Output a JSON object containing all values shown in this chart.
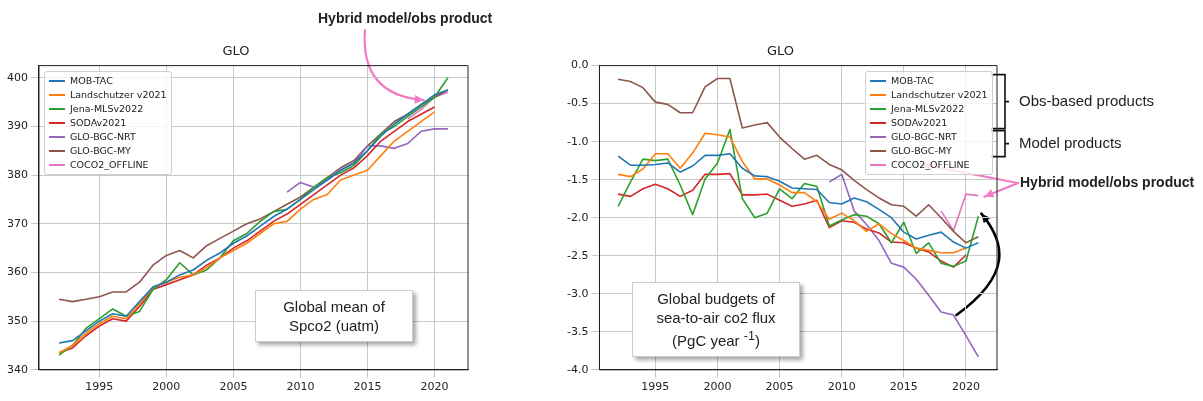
{
  "chart_data": [
    {
      "type": "line",
      "title": "GLO",
      "x": [
        1992,
        1993,
        1994,
        1995,
        1996,
        1997,
        1998,
        1999,
        2000,
        2001,
        2002,
        2003,
        2004,
        2005,
        2006,
        2007,
        2008,
        2009,
        2010,
        2011,
        2012,
        2013,
        2014,
        2015,
        2016,
        2017,
        2018,
        2019,
        2020,
        2021
      ],
      "xlim": [
        1990.5,
        2022.5
      ],
      "xticks": [
        1995,
        2000,
        2005,
        2010,
        2015,
        2020
      ],
      "ylim": [
        340,
        402.5
      ],
      "yticks": [
        340,
        350,
        360,
        370,
        380,
        390,
        400
      ],
      "grid": true,
      "legend": "top left",
      "marker": "none",
      "line_style": "solid",
      "series": [
        {
          "name": "MOB-TAC",
          "color": "#1f77b4",
          "values": [
            345.5,
            346,
            348,
            350,
            351.5,
            351,
            354,
            357,
            358,
            359.5,
            360.5,
            362.5,
            364,
            366,
            367.5,
            369.5,
            371.5,
            373,
            375,
            377,
            379,
            381,
            382.5,
            385,
            388,
            390.5,
            392.5,
            394.5,
            396.5,
            397.5
          ]
        },
        {
          "name": "Landschutzer v2021",
          "color": "#ff7f0e",
          "values": [
            343.5,
            345,
            347.5,
            349.5,
            351,
            350.5,
            353.5,
            357,
            358,
            359,
            359.5,
            361,
            363,
            364.5,
            366,
            368,
            370,
            370.5,
            373,
            375,
            376,
            379,
            380,
            381,
            384,
            387,
            389,
            391,
            393,
            null
          ]
        },
        {
          "name": "Jena-MLSv2022",
          "color": "#2ca02c",
          "values": [
            343,
            345,
            348.5,
            350.5,
            352.5,
            351,
            352,
            356.5,
            358.5,
            362,
            359.5,
            360.5,
            363,
            366.5,
            368,
            370.5,
            372.5,
            373,
            375,
            377.5,
            379.5,
            380.5,
            382,
            385,
            388.5,
            390,
            392,
            394,
            396,
            400
          ]
        },
        {
          "name": "SODAv2021",
          "color": "#d62728",
          "values": [
            343.5,
            344.5,
            347,
            349,
            350.5,
            350,
            353,
            356.5,
            357.5,
            358.5,
            359.5,
            361.5,
            363,
            365,
            366.5,
            368.5,
            370.5,
            372,
            374,
            376,
            378,
            380,
            381.5,
            384,
            387,
            389,
            391,
            392.5,
            394,
            null
          ]
        },
        {
          "name": "GLO-BGC-NRT",
          "color": "#9467bd",
          "values": [
            null,
            null,
            null,
            null,
            null,
            null,
            null,
            null,
            null,
            null,
            null,
            null,
            null,
            null,
            null,
            null,
            null,
            376.5,
            378.5,
            377.5,
            379,
            381,
            382.5,
            386,
            386,
            385.5,
            386.5,
            389,
            389.5,
            389.5
          ]
        },
        {
          "name": "GLO-BGC-MY",
          "color": "#8c564b",
          "values": [
            354.5,
            354,
            354.5,
            355,
            356,
            356,
            358,
            361.5,
            363.5,
            364.5,
            363,
            365.5,
            367,
            368.5,
            370,
            371,
            372.5,
            374,
            375.5,
            377.5,
            379.5,
            381.5,
            383,
            386,
            388.5,
            391,
            392.5,
            394.5,
            396,
            397.5
          ]
        },
        {
          "name": "COCO2_OFFLINE",
          "color": "#e377c2",
          "values": [
            null,
            null,
            null,
            null,
            null,
            null,
            null,
            null,
            null,
            null,
            null,
            null,
            null,
            null,
            null,
            null,
            null,
            null,
            null,
            null,
            null,
            null,
            null,
            null,
            null,
            null,
            391.5,
            393.5,
            396,
            397
          ]
        }
      ],
      "annotations": [
        {
          "text": "Hybrid model/obs product",
          "x": 2019.5,
          "y": 395
        },
        "Global mean of Spco2 (uatm)"
      ]
    },
    {
      "type": "line",
      "title": "GLO",
      "x": [
        1992,
        1993,
        1994,
        1995,
        1996,
        1997,
        1998,
        1999,
        2000,
        2001,
        2002,
        2003,
        2004,
        2005,
        2006,
        2007,
        2008,
        2009,
        2010,
        2011,
        2012,
        2013,
        2014,
        2015,
        2016,
        2017,
        2018,
        2019,
        2020,
        2021
      ],
      "xlim": [
        1990.5,
        2022.5
      ],
      "xticks": [
        1995,
        2000,
        2005,
        2010,
        2015,
        2020
      ],
      "ylim": [
        -4.0,
        0.0
      ],
      "yticks": [
        {
          "value": -4,
          "label": "-4.0"
        },
        -3.5,
        {
          "value": -3,
          "label": "-3.0"
        },
        -2.5,
        {
          "value": -2,
          "label": "-2.0"
        },
        -1.5,
        {
          "value": -1,
          "label": "-1.0"
        },
        -0.5,
        {
          "value": 0,
          "label": "0.0"
        }
      ],
      "grid": true,
      "legend": "top right",
      "marker": "none",
      "line_style": "solid",
      "series": [
        {
          "name": "MOB-TAC",
          "color": "#1f77b4",
          "values": [
            -1.19,
            -1.31,
            -1.31,
            -1.3,
            -1.28,
            -1.4,
            -1.32,
            -1.18,
            -1.18,
            -1.16,
            -1.35,
            -1.45,
            -1.46,
            -1.52,
            -1.61,
            -1.62,
            -1.63,
            -1.8,
            -1.82,
            -1.74,
            -1.79,
            -1.89,
            -2.0,
            -2.19,
            -2.28,
            -2.23,
            -2.19,
            -2.32,
            -2.4,
            -2.33
          ]
        },
        {
          "name": "Landschutzer v2021",
          "color": "#ff7f0e",
          "values": [
            -1.43,
            -1.46,
            -1.36,
            -1.16,
            -1.16,
            -1.35,
            -1.15,
            -0.89,
            -0.91,
            -0.94,
            -1.26,
            -1.49,
            -1.49,
            -1.57,
            -1.67,
            -1.67,
            -1.79,
            -2.02,
            -1.94,
            -2.04,
            -2.18,
            -2.08,
            -2.21,
            -2.3,
            -2.4,
            -2.43,
            -2.46,
            -2.46,
            -2.4,
            null
          ]
        },
        {
          "name": "Jena-MLSv2022",
          "color": "#2ca02c",
          "values": [
            -1.85,
            -1.53,
            -1.23,
            -1.25,
            -1.23,
            -1.57,
            -1.96,
            -1.49,
            -1.28,
            -0.84,
            -1.75,
            -2.0,
            -1.94,
            -1.62,
            -1.75,
            -1.55,
            -1.59,
            -2.11,
            -2.03,
            -1.96,
            -1.98,
            -2.08,
            -2.33,
            -2.06,
            -2.47,
            -2.33,
            -2.6,
            -2.64,
            -2.57,
            -1.98
          ]
        },
        {
          "name": "SODAv2021",
          "color": "#d62728",
          "values": [
            -1.69,
            -1.72,
            -1.62,
            -1.56,
            -1.62,
            -1.72,
            -1.64,
            -1.43,
            -1.43,
            -1.42,
            -1.7,
            -1.7,
            -1.69,
            -1.77,
            -1.85,
            -1.82,
            -1.77,
            -2.13,
            -2.04,
            -2.06,
            -2.15,
            -2.2,
            -2.32,
            -2.33,
            -2.4,
            -2.45,
            -2.57,
            -2.65,
            -2.49,
            null
          ]
        },
        {
          "name": "GLO-BGC-NRT",
          "color": "#9467bd",
          "values": [
            null,
            null,
            null,
            null,
            null,
            null,
            null,
            null,
            null,
            null,
            null,
            null,
            null,
            null,
            null,
            null,
            null,
            -1.53,
            -1.43,
            -1.91,
            -2.09,
            -2.3,
            -2.6,
            -2.65,
            -2.81,
            -3.02,
            -3.24,
            -3.28,
            -3.55,
            -3.83
          ]
        },
        {
          "name": "GLO-BGC-MY",
          "color": "#8c564b",
          "values": [
            -0.18,
            -0.21,
            -0.29,
            -0.48,
            -0.51,
            -0.62,
            -0.62,
            -0.28,
            -0.17,
            -0.17,
            -0.82,
            -0.78,
            -0.75,
            -0.94,
            -1.09,
            -1.23,
            -1.18,
            -1.3,
            -1.37,
            -1.51,
            -1.63,
            -1.74,
            -1.83,
            -1.85,
            -1.98,
            -1.83,
            -2.0,
            -2.18,
            -2.33,
            -2.25
          ]
        },
        {
          "name": "COCO2_OFFLINE",
          "color": "#e377c2",
          "values": [
            null,
            null,
            null,
            null,
            null,
            null,
            null,
            null,
            null,
            null,
            null,
            null,
            null,
            null,
            null,
            null,
            null,
            null,
            null,
            null,
            null,
            null,
            null,
            null,
            null,
            null,
            -1.91,
            -2.17,
            -1.69,
            -1.71
          ]
        }
      ],
      "annotations": [
        "Global budgets of sea-to-air co2 flux (PgC year $^{-1}$)",
        "Obs-based products",
        "Model products",
        {
          "text": "Hybrid model/obs product",
          "x": 2021,
          "y": -1.71
        }
      ]
    }
  ]
}
